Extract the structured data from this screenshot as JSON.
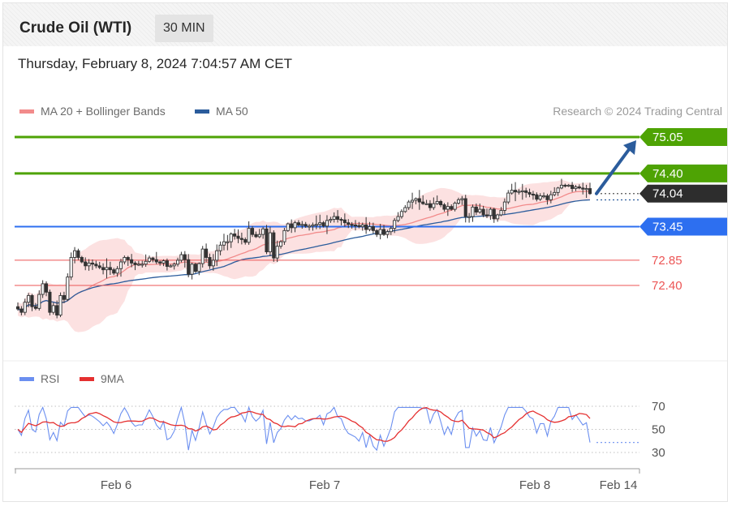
{
  "header": {
    "title": "Crude Oil (WTI)",
    "interval": "30 MIN",
    "timestamp": "Thursday, February 8, 2024 7:04:57 AM CET"
  },
  "legend": {
    "ma20_label": "MA 20 + Bollinger Bands",
    "ma50_label": "MA 50",
    "rsi_label": "RSI",
    "ma9_label": "9MA",
    "copyright": "Research © 2024 Trading Central"
  },
  "colors": {
    "green": "#4ea304",
    "blue_level": "#2d6ff0",
    "red_level": "#ec5555",
    "candle": "#333333",
    "bollinger_fill": "#fbdcdc",
    "ma20": "#f28b8b",
    "ma50": "#2b5c9c",
    "rsi": "#6b8ff0",
    "ma9": "#e53030",
    "arrow": "#2b5c9c",
    "current": "#2d2d2d"
  },
  "chart_data": [
    {
      "type": "line",
      "title": "Crude Oil (WTI)",
      "levels": [
        {
          "value": 75.05,
          "label": "75.05",
          "kind": "resistance"
        },
        {
          "value": 74.4,
          "label": "74.40",
          "kind": "resistance"
        },
        {
          "value": 74.04,
          "label": "74.04",
          "kind": "current"
        },
        {
          "value": 73.45,
          "label": "73.45",
          "kind": "pivot"
        },
        {
          "value": 72.85,
          "label": "72.85",
          "kind": "support"
        },
        {
          "value": 72.4,
          "label": "72.40",
          "kind": "support"
        }
      ],
      "x_labels": [
        "Feb 6",
        "Feb 7",
        "Feb 8",
        "Feb 14"
      ],
      "price_range": [
        71.7,
        75.3
      ],
      "close_profile": [
        71.98,
        71.92,
        72.1,
        72.22,
        72.02,
        71.99,
        72.24,
        72.43,
        72.28,
        71.92,
        72.04,
        71.87,
        72.22,
        72.15,
        72.55,
        72.9,
        73.02,
        72.9,
        72.82,
        72.75,
        72.8,
        72.78,
        72.75,
        72.72,
        72.68,
        72.72,
        72.68,
        72.62,
        72.7,
        72.82,
        72.9,
        72.86,
        72.8,
        72.77,
        72.78,
        72.78,
        72.83,
        72.89,
        72.86,
        72.82,
        72.8,
        72.84,
        72.74,
        72.75,
        72.78,
        72.85,
        72.95,
        72.86,
        72.6,
        72.78,
        72.65,
        72.79,
        73.05,
        72.9,
        72.75,
        72.85,
        73.02,
        73.12,
        73.18,
        73.18,
        73.32,
        73.28,
        73.24,
        73.22,
        73.17,
        73.42,
        73.31,
        73.27,
        73.31,
        73.41,
        73.0,
        73.34,
        72.89,
        73.1,
        73.18,
        73.38,
        73.5,
        73.43,
        73.52,
        73.48,
        73.49,
        73.46,
        73.46,
        73.48,
        73.49,
        73.52,
        73.46,
        73.56,
        73.58,
        73.63,
        73.58,
        73.57,
        73.52,
        73.49,
        73.48,
        73.47,
        73.45,
        73.48,
        73.4,
        73.45,
        73.38,
        73.31,
        73.4,
        73.31,
        73.36,
        73.42,
        73.56,
        73.63,
        73.72,
        73.79,
        73.89,
        73.92,
        73.95,
        73.89,
        73.86,
        73.86,
        73.79,
        73.86,
        73.9,
        73.84,
        73.76,
        73.81,
        73.76,
        73.87,
        73.93,
        73.95,
        73.63,
        73.63,
        73.8,
        73.71,
        73.76,
        73.66,
        73.65,
        73.76,
        73.59,
        73.66,
        73.74,
        73.89,
        74.05,
        74.1,
        74.07,
        74.08,
        74.09,
        74.06,
        74.03,
        74.02,
        73.94,
        74.0,
        74.0,
        73.93,
        74.02,
        74.06,
        74.14,
        74.19,
        74.18,
        74.19,
        74.13,
        74.16,
        74.14,
        74.12,
        74.13,
        74.04
      ],
      "series": [
        {
          "name": "MA 20 + Bollinger Bands"
        },
        {
          "name": "MA 50"
        }
      ]
    },
    {
      "type": "line",
      "series": [
        {
          "name": "RSI"
        },
        {
          "name": "9MA"
        }
      ],
      "ylim": [
        30,
        70
      ],
      "y_ticks": [
        70,
        50,
        30
      ]
    }
  ]
}
